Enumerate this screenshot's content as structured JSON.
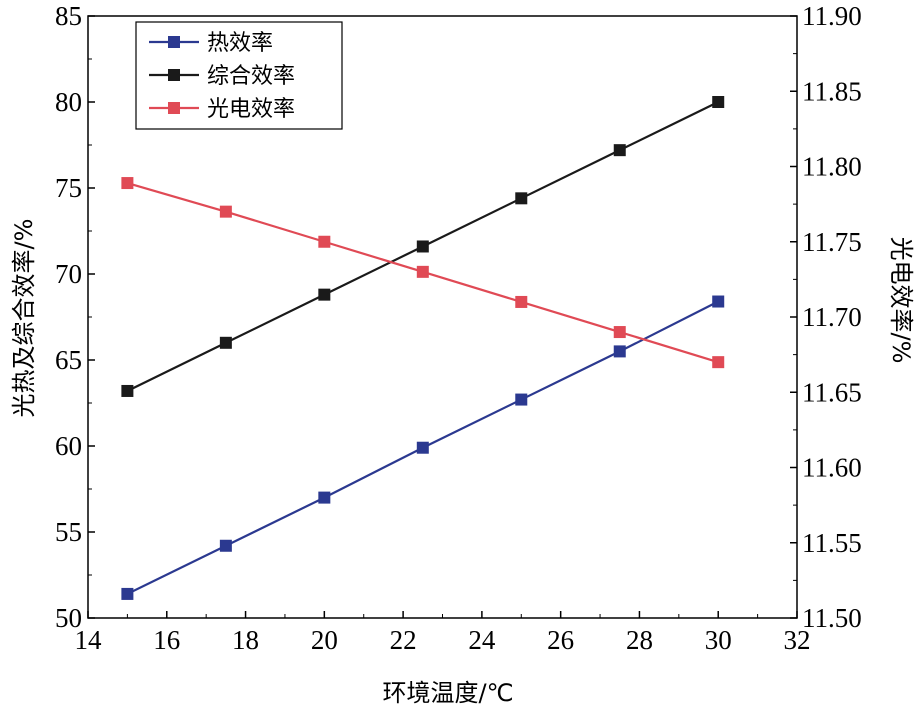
{
  "chart_data": {
    "type": "line",
    "xlabel": "环境温度/℃",
    "ylabel_left": "光热及综合效率/%",
    "ylabel_right": "光电效率/%",
    "xlim": [
      14,
      32
    ],
    "xticks": [
      "14",
      "16",
      "18",
      "20",
      "22",
      "24",
      "26",
      "28",
      "30",
      "32"
    ],
    "ylim_left": [
      50,
      85
    ],
    "yticks_left": [
      "50",
      "55",
      "60",
      "65",
      "70",
      "75",
      "80",
      "85"
    ],
    "ylim_right": [
      11.5,
      11.9
    ],
    "yticks_right": [
      "11.50",
      "11.55",
      "11.60",
      "11.65",
      "11.70",
      "11.75",
      "11.80",
      "11.85",
      "11.90"
    ],
    "legend_position": "top-left",
    "x": [
      15,
      17.5,
      20,
      22.5,
      25,
      27.5,
      30
    ],
    "series": [
      {
        "name": "热效率",
        "axis": "left",
        "color": "#2b3990",
        "values": [
          51.4,
          54.2,
          57.0,
          59.9,
          62.7,
          65.5,
          68.4
        ]
      },
      {
        "name": "综合效率",
        "axis": "left",
        "color": "#1a1a1a",
        "values": [
          63.2,
          66.0,
          68.8,
          71.6,
          74.4,
          77.2,
          80.0
        ]
      },
      {
        "name": "光电效率",
        "axis": "right",
        "color": "#e04a55",
        "values": [
          11.789,
          11.77,
          11.75,
          11.73,
          11.71,
          11.69,
          11.67
        ]
      }
    ]
  }
}
